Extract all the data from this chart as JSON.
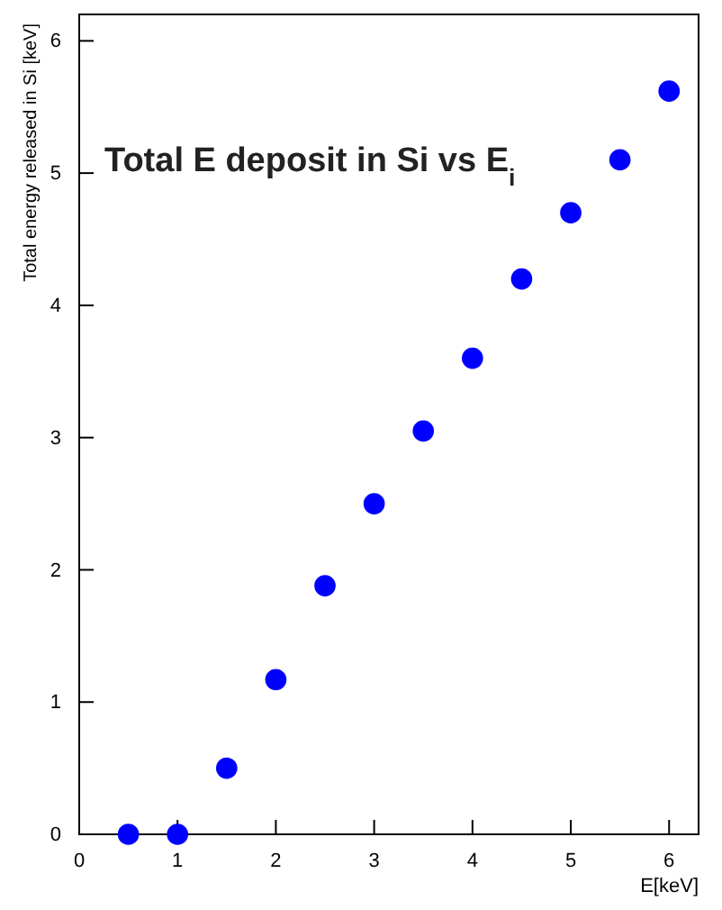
{
  "chart_data": {
    "type": "scatter",
    "title": "Total E deposit  in Si vs E$_{i}$",
    "xlabel": "E[keV]",
    "ylabel": "Total energy released in Si [keV]",
    "x": [
      0.5,
      1,
      1.5,
      2,
      2.5,
      3,
      3.5,
      4,
      4.5,
      5,
      5.5,
      6
    ],
    "series": [
      {
        "color": "#0000ff",
        "values": [
          0,
          0,
          0.5,
          1.17,
          1.88,
          2.5,
          3.05,
          3.6,
          4.2,
          4.7,
          5.1,
          5.62
        ]
      }
    ],
    "xlim": [
      0,
      6.3
    ],
    "ylim": [
      0,
      6.2
    ],
    "xticks": [
      0,
      1,
      2,
      3,
      4,
      5,
      6
    ],
    "yticks": [
      0,
      1,
      2,
      3,
      4,
      5,
      6
    ],
    "marker": "circle"
  }
}
